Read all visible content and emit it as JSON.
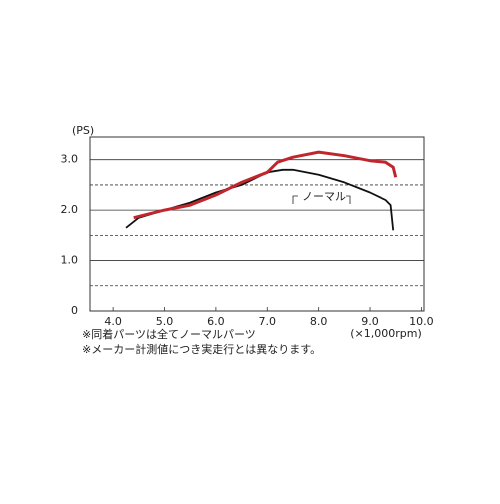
{
  "chart_data": {
    "type": "line",
    "y_label": "(PS)",
    "x_label": "(×1,000rpm)",
    "annotation": "ノーマル",
    "notes": [
      "※同着パーツは全てノーマルパーツ",
      "※メーカー計測値につき実走行とは異なります。"
    ],
    "xlim": [
      3.55,
      10.05
    ],
    "ylim": [
      0,
      3.45
    ],
    "xticks": [
      {
        "value": 4,
        "label": "4.0"
      },
      {
        "value": 5,
        "label": "5.0"
      },
      {
        "value": 6,
        "label": "6.0"
      },
      {
        "value": 7,
        "label": "7.0"
      },
      {
        "value": 8,
        "label": "8.0"
      },
      {
        "value": 9,
        "label": "9.0"
      },
      {
        "value": 10,
        "label": "10.0"
      }
    ],
    "yticks": [
      0,
      {
        "value": 1,
        "label": "1.0"
      },
      {
        "value": 2,
        "label": "2.0"
      },
      {
        "value": 3,
        "label": "3.0"
      }
    ],
    "dashed_grid": [
      0.5,
      1.5,
      2.5
    ],
    "series": [
      {
        "name": "ノーマル",
        "color": "#111111",
        "x": [
          4.25,
          4.5,
          5.0,
          5.5,
          6.0,
          6.5,
          7.0,
          7.3,
          7.5,
          8.0,
          8.5,
          9.0,
          9.3,
          9.4,
          9.45
        ],
        "values": [
          1.65,
          1.85,
          2.0,
          2.15,
          2.35,
          2.5,
          2.75,
          2.8,
          2.8,
          2.7,
          2.55,
          2.35,
          2.2,
          2.1,
          1.6
        ]
      },
      {
        "color": "#c0272d",
        "x": [
          4.4,
          5.0,
          5.5,
          6.0,
          6.5,
          7.0,
          7.2,
          7.5,
          8.0,
          8.5,
          9.0,
          9.3,
          9.45,
          9.5
        ],
        "values": [
          1.85,
          2.0,
          2.1,
          2.3,
          2.55,
          2.75,
          2.95,
          3.05,
          3.15,
          3.08,
          2.98,
          2.95,
          2.85,
          2.65
        ]
      }
    ]
  }
}
